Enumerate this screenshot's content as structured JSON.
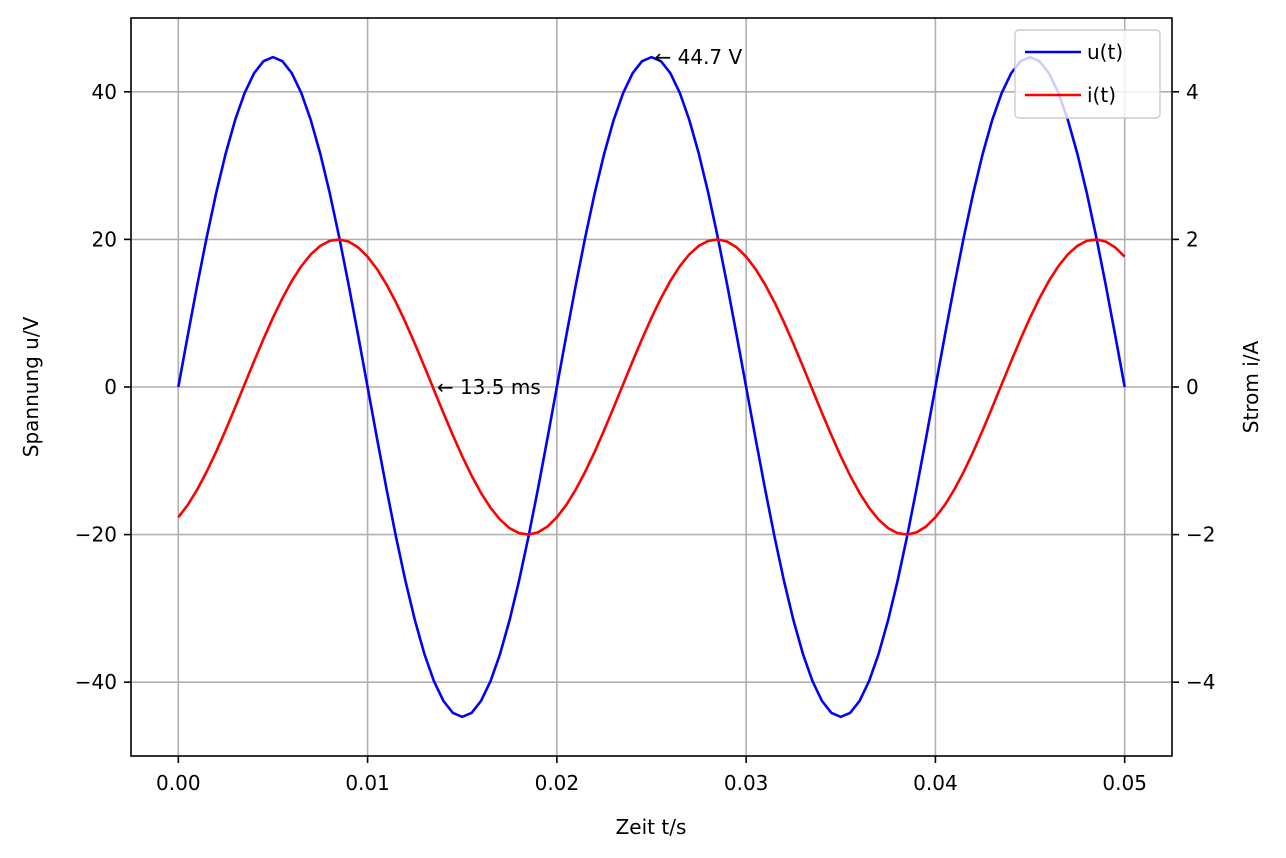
{
  "chart_data": {
    "type": "line",
    "xlabel": "Zeit t/s",
    "ylabel_left": "Spannung u/V",
    "ylabel_right": "Strom i/A",
    "xlim": [
      -0.0025,
      0.0525
    ],
    "ylim_left": [
      -50,
      50
    ],
    "ylim_right": [
      -5,
      5
    ],
    "x_ticks": [
      0.0,
      0.01,
      0.02,
      0.03,
      0.04,
      0.05
    ],
    "x_tick_labels": [
      "0.00",
      "0.01",
      "0.02",
      "0.03",
      "0.04",
      "0.05"
    ],
    "y_left_ticks": [
      -40,
      -20,
      0,
      20,
      40
    ],
    "y_left_tick_labels": [
      "−40",
      "−20",
      "0",
      "20",
      "40"
    ],
    "y_right_ticks": [
      -4,
      -2,
      0,
      2,
      4
    ],
    "y_right_tick_labels": [
      "−4",
      "−2",
      "0",
      "2",
      "4"
    ],
    "grid": true,
    "legend_position": "top-right",
    "series": [
      {
        "name": "u(t)",
        "color": "#0000ff",
        "axis": "left",
        "function": "sine",
        "amplitude": 44.7,
        "frequency_hz": 50,
        "phase_deg": 0,
        "t_start": 0.0,
        "t_end": 0.05
      },
      {
        "name": "i(t)",
        "color": "#ff0000",
        "axis": "right",
        "function": "sine",
        "amplitude": 2.0,
        "frequency_hz": 50,
        "phase_deg": -62,
        "t_start": 0.0,
        "t_end": 0.05
      }
    ],
    "annotations": [
      {
        "text": "← 44.7 V",
        "x": 0.025,
        "y": 44.7,
        "axis": "left"
      },
      {
        "text": "← 13.5 ms",
        "x": 0.0135,
        "y": 0.0,
        "axis": "left"
      }
    ]
  }
}
